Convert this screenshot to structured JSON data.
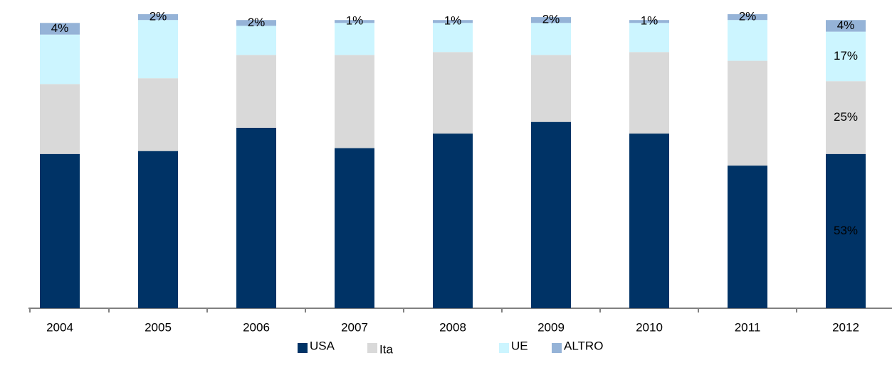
{
  "chart_data": {
    "type": "bar",
    "stacked": true,
    "categories": [
      "2004",
      "2005",
      "2006",
      "2007",
      "2008",
      "2009",
      "2010",
      "2011",
      "2012"
    ],
    "series": [
      {
        "name": "USA",
        "color": "#003366",
        "values": [
          53,
          54,
          62,
          55,
          60,
          64,
          60,
          49,
          53
        ],
        "value_labels": [
          null,
          null,
          null,
          null,
          null,
          null,
          null,
          null,
          "53%"
        ]
      },
      {
        "name": "Ita",
        "color": "#d9d9d9",
        "values": [
          24,
          25,
          25,
          32,
          28,
          23,
          28,
          36,
          25
        ],
        "value_labels": [
          null,
          null,
          null,
          null,
          null,
          null,
          null,
          null,
          "25%"
        ]
      },
      {
        "name": "UE",
        "color": "#ccf5ff",
        "values": [
          17,
          20,
          10,
          11,
          10,
          11,
          10,
          14,
          17
        ],
        "value_labels": [
          null,
          null,
          null,
          null,
          null,
          null,
          null,
          null,
          "17%"
        ]
      },
      {
        "name": "ALTRO",
        "color": "#95b3d7",
        "values": [
          4,
          2,
          2,
          1,
          1,
          2,
          1,
          2,
          4
        ],
        "value_labels": [
          "4%",
          "2%",
          "2%",
          "1%",
          "1%",
          "2%",
          "1%",
          "2%",
          "4%"
        ]
      }
    ],
    "legend": "bottom"
  }
}
